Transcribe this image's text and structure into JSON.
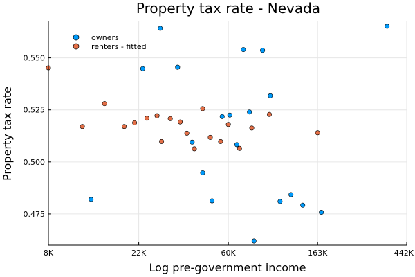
{
  "chart_data": {
    "type": "scatter",
    "title": "Property tax rate - Nevada",
    "xlabel": "Log pre-government income",
    "ylabel": "Property tax rate",
    "x_scale": "log",
    "xlim": [
      8000,
      442000
    ],
    "ylim": [
      0.46,
      0.5675
    ],
    "x_ticks": [
      {
        "value": 8000,
        "label": "8K"
      },
      {
        "value": 22000,
        "label": "22K"
      },
      {
        "value": 60000,
        "label": "60K"
      },
      {
        "value": 163000,
        "label": "163K"
      },
      {
        "value": 442000,
        "label": "442K"
      }
    ],
    "y_ticks": [
      {
        "value": 0.475,
        "label": "0.475"
      },
      {
        "value": 0.5,
        "label": "0.500"
      },
      {
        "value": 0.525,
        "label": "0.525"
      },
      {
        "value": 0.55,
        "label": "0.550"
      }
    ],
    "grid": true,
    "legend_position": "top-left",
    "series": [
      {
        "name": "owners",
        "color": "#009AFA",
        "points": [
          [
            12900,
            0.482
          ],
          [
            23000,
            0.5448
          ],
          [
            28000,
            0.5642
          ],
          [
            34000,
            0.5455
          ],
          [
            40000,
            0.5095
          ],
          [
            45000,
            0.4948
          ],
          [
            50000,
            0.4813
          ],
          [
            56000,
            0.5218
          ],
          [
            61000,
            0.5225
          ],
          [
            66000,
            0.5083
          ],
          [
            71000,
            0.554
          ],
          [
            76000,
            0.524
          ],
          [
            80000,
            0.462
          ],
          [
            88000,
            0.5536
          ],
          [
            96000,
            0.5318
          ],
          [
            107000,
            0.481
          ],
          [
            121000,
            0.4843
          ],
          [
            138000,
            0.4792
          ],
          [
            170000,
            0.4758
          ],
          [
            355000,
            0.5652
          ]
        ]
      },
      {
        "name": "renters - fitted",
        "color": "#E36F47",
        "points": [
          [
            8000,
            0.5452
          ],
          [
            11700,
            0.517
          ],
          [
            15000,
            0.528
          ],
          [
            18700,
            0.517
          ],
          [
            21000,
            0.5188
          ],
          [
            24100,
            0.521
          ],
          [
            27000,
            0.5222
          ],
          [
            28400,
            0.5098
          ],
          [
            31300,
            0.5208
          ],
          [
            35000,
            0.5192
          ],
          [
            37700,
            0.5138
          ],
          [
            41000,
            0.5063
          ],
          [
            45000,
            0.5256
          ],
          [
            49000,
            0.5118
          ],
          [
            55000,
            0.5098
          ],
          [
            60000,
            0.518
          ],
          [
            68000,
            0.5065
          ],
          [
            78000,
            0.5163
          ],
          [
            95000,
            0.5228
          ],
          [
            163000,
            0.514
          ]
        ]
      }
    ]
  }
}
